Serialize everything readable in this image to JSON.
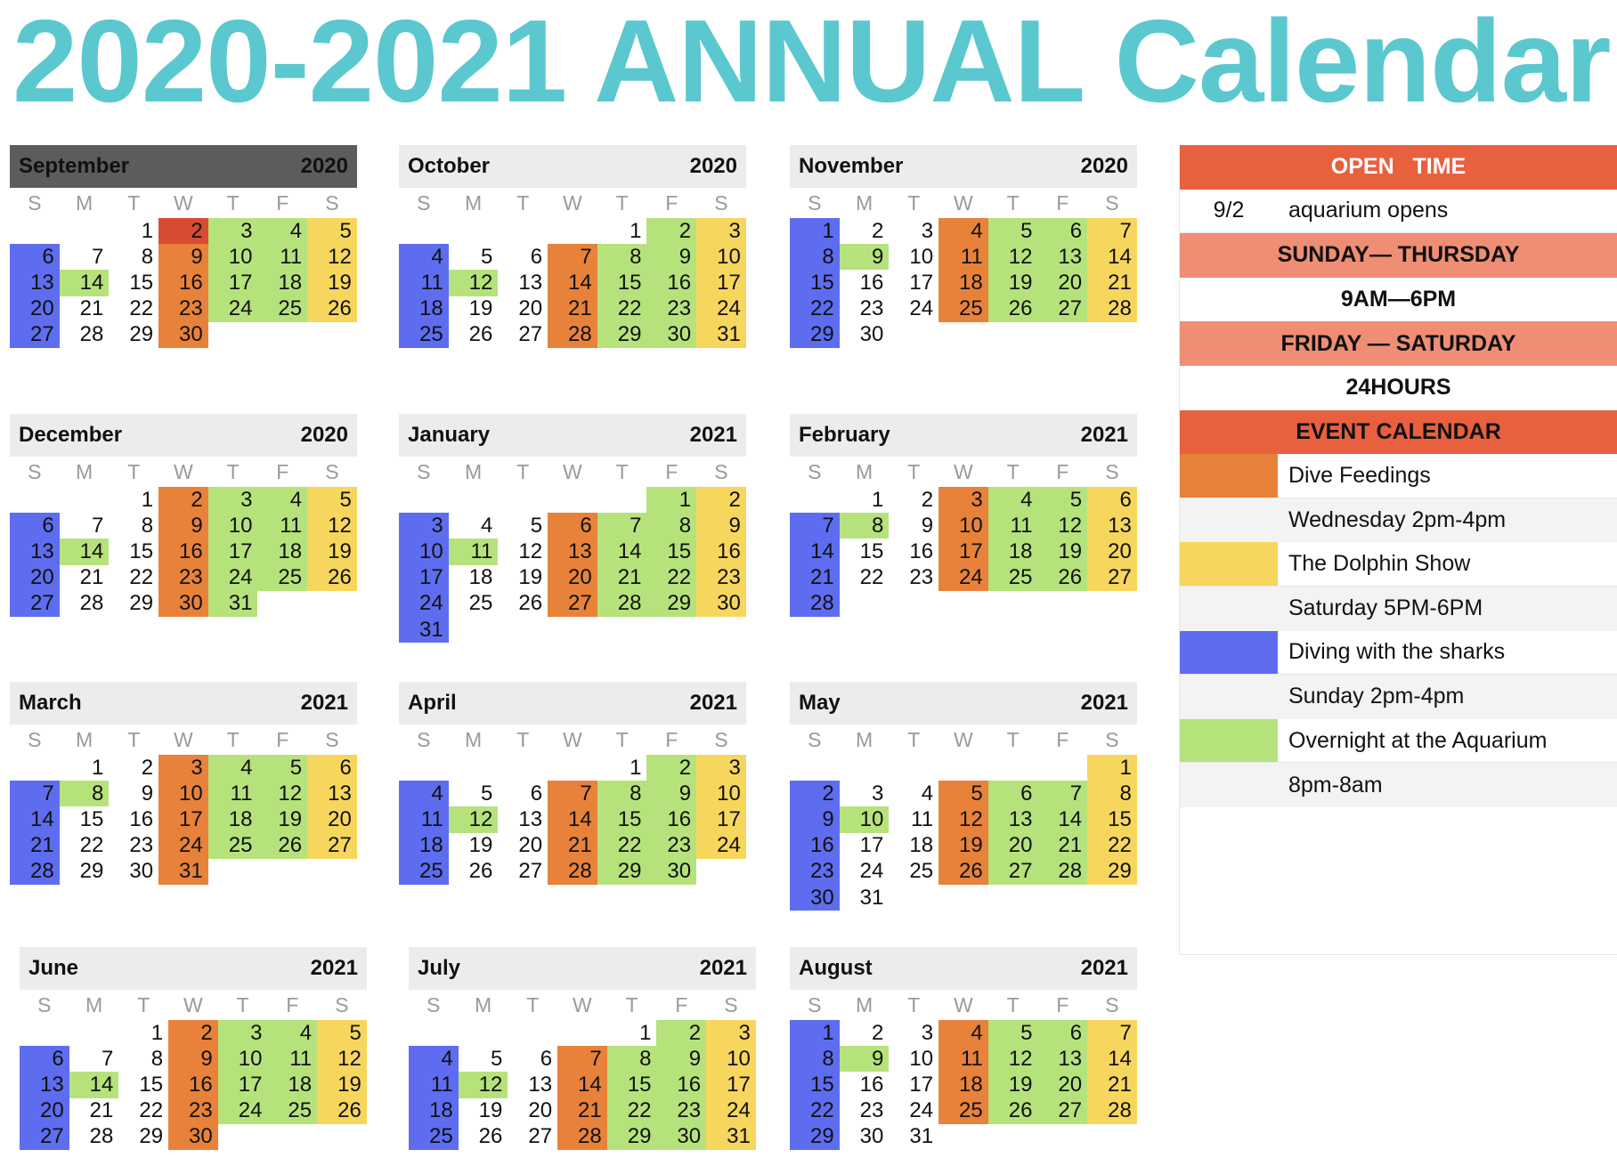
{
  "title": "2020-2021 ANNUAL Calendar",
  "weekday_letters": [
    "S",
    "M",
    "T",
    "W",
    "T",
    "F",
    "S"
  ],
  "colors": {
    "orange": "#e8823a",
    "yellow": "#f7d65e",
    "blue": "#5e6df0",
    "green": "#b6e27c",
    "red": "#d84b32"
  },
  "months": [
    {
      "name": "September",
      "year": "2020",
      "start": 2,
      "length": 30,
      "highlight": {
        "2": "red"
      }
    },
    {
      "name": "October",
      "year": "2020",
      "start": 4,
      "length": 31
    },
    {
      "name": "November",
      "year": "2020",
      "start": 0,
      "length": 30
    },
    {
      "name": "December",
      "year": "2020",
      "start": 2,
      "length": 31
    },
    {
      "name": "January",
      "year": "2021",
      "start": 5,
      "length": 31
    },
    {
      "name": "February",
      "year": "2021",
      "start": 1,
      "length": 28
    },
    {
      "name": "March",
      "year": "2021",
      "start": 1,
      "length": 31
    },
    {
      "name": "April",
      "year": "2021",
      "start": 4,
      "length": 30
    },
    {
      "name": "May",
      "year": "2021",
      "start": 6,
      "length": 31
    },
    {
      "name": "June",
      "year": "2021",
      "start": 2,
      "length": 30
    },
    {
      "name": "July",
      "year": "2021",
      "start": 4,
      "length": 31
    },
    {
      "name": "August",
      "year": "2021",
      "start": 0,
      "length": 31
    }
  ],
  "sidebar": {
    "open_time_label": "OPEN   TIME",
    "opening": {
      "date": "9/2",
      "text": "aquarium opens"
    },
    "sun_thu_label": "SUNDAY— THURSDAY",
    "sun_thu_hours": "9AM—6PM",
    "fri_sat_label": "FRIDAY — SATURDAY",
    "fri_sat_hours": "24HOURS",
    "event_calendar_label": "EVENT CALENDAR",
    "events": [
      {
        "color": "orange",
        "name": "Dive Feedings",
        "time": "Wednesday 2pm-4pm"
      },
      {
        "color": "yellow",
        "name": "The Dolphin Show",
        "time": "Saturday 5PM-6PM"
      },
      {
        "color": "blue",
        "name": "Diving with the sharks",
        "time": "Sunday 2pm-4pm"
      },
      {
        "color": "green",
        "name": "Overnight at the Aquarium",
        "time": "8pm-8am"
      }
    ]
  }
}
